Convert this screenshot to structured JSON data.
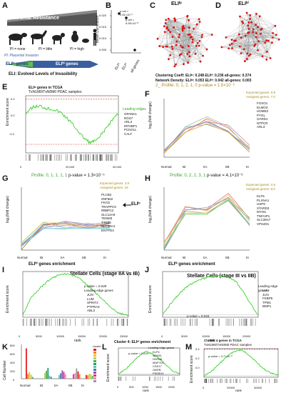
{
  "panelA": {
    "letter": "A",
    "banner": "Stromal Resistance",
    "pi_none": "PI = none",
    "pi_little": "PI = little",
    "pi_high": "PI = high",
    "pi_def": "PI: Placental Invasion",
    "eli_lo_genes": "ELIˡᵒ genes",
    "eli_hi_genes": "ELIʰⁱ genes",
    "eli_def": "ELI: Evolved Levels of Invasibility",
    "arrow_color": "#3a5fa0",
    "green_color": "#5fbf4d"
  },
  "panelB": {
    "letter": "B",
    "ylabel": "Mean Correlation",
    "yticks": [
      "0.020",
      "0.015",
      "0.010",
      "0.005"
    ],
    "xlabels": [
      "ELIˡᵒ",
      "ELIʰⁱ",
      "all-genes"
    ],
    "pval1": "p-val =",
    "pval1b": "2.61×10⁻¹",
    "pval2": "p-val =",
    "pval2b": "8.55×10⁻⁵"
  },
  "panelC": {
    "letter": "C",
    "title": "ELIˡᵒ"
  },
  "panelD": {
    "letter": "D",
    "title": "ELIʰⁱ"
  },
  "stats": {
    "line1": "Clustering Coeff: ELIˡᵒ: 0.248 ELIʰⁱ: 0.236 all-genes: 0.374",
    "line2": "Network Density: ELIˡᵒ: 0.053 ELIʰⁱ: 0.042 all-genes: 0.003"
  },
  "panelE": {
    "letter": "E",
    "title1": "ELIˡᵒ genes in TCGA",
    "title2": "TxN1M0/TxN0M0 PDAC samples",
    "ylabel": "Enrichment score",
    "yticks": [
      "0.2",
      "0.0",
      "-0.2"
    ],
    "xticks": [
      "0",
      "20,000",
      "40,000"
    ],
    "leading_label": "Leading edges",
    "leading": [
      "GPANK1",
      "RGS7",
      "ARL3",
      "IRF2BP1",
      "PCNX1L",
      "CALT"
    ]
  },
  "panelF": {
    "letter": "F",
    "profile": "2_ Profile: 0, 1, 2, 1, 0",
    "pvalue": "p-value = 1.5×10⁻⁶",
    "expected": "Expected genes: 0.9",
    "assigned": "Assigned genes: 7.0",
    "ylabel": "log₂(fold change)",
    "xticks": [
      "Normal",
      "IB",
      "IIA",
      "IIB",
      "III"
    ],
    "genes": [
      "FOXO1",
      "ELMO3",
      "HOMEZ",
      "PYGL",
      "OARD1",
      "NTPCR",
      "ARL3"
    ]
  },
  "panelG": {
    "letter": "G",
    "profile": "Profile: 0, 1, 1, 1, 1",
    "pvalue": "p-value = 1.3×10⁻⁵",
    "expected": "Expected genes: 3.8",
    "assigned": "Assigned genes: 19",
    "ylabel": "log₂(fold change)",
    "xticks": [
      "Normal",
      "IB",
      "IIA",
      "IIB",
      "III"
    ],
    "genes": [
      "PLCB2",
      "ZNF662",
      "FKCD",
      "TRAPPC9",
      "RBBP12",
      "SLC12A9",
      "TENM3",
      "TTC23",
      "SLC38A4",
      "ENTPD4"
    ],
    "arrow_label": "ELIˡᵒ"
  },
  "panelH": {
    "letter": "H",
    "profile": "Profile: 0, 2, 2, 3, 1",
    "pvalue": "p-value = 4.1×10⁻⁶",
    "expected": "Expected genes: 0.9",
    "assigned": "Assigned genes: 8.0",
    "ylabel": "log₂(fold change)",
    "xticks": [
      "Normal",
      "IB",
      "IIA",
      "IIB",
      "III"
    ],
    "genes": [
      "KLF5",
      "PLXNA1",
      "USP9",
      "STARD3",
      "MYO5",
      "TNFAIP1",
      "SLC39A7",
      "VPS4D1"
    ]
  },
  "panelI": {
    "letter": "I",
    "title": "ELIʰⁱ genes enrichment",
    "subtitle": "Stellate Cells (stage IIA vs IB)",
    "pvalue": "p-value = 0.039",
    "leading_label": "Leading edge genes",
    "leading": [
      "JUN",
      "LUM",
      "SPINT2",
      "PTPRA3",
      "ABL3"
    ],
    "ylabel": "Enrichment score",
    "xlabel": "rank",
    "xticks": [
      "0",
      "5000",
      "10000",
      "15000",
      "20000",
      "25000"
    ]
  },
  "panelJ": {
    "letter": "J",
    "title": "ELIʰⁱ genes enrichment",
    "subtitle": "Stellate Cells (stage III vs IIB)",
    "pvalue": "p-value = 0.034",
    "leading_label": "Leading edge genes",
    "leading": [
      "LUM",
      "JUN",
      "FKBP5",
      "TPM1",
      "BMP1"
    ],
    "ylabel": "Enrichment score",
    "xlabel": "rank",
    "xticks": [
      "0",
      "5000",
      "10000",
      "15000",
      "20000"
    ]
  },
  "panelK": {
    "letter": "K",
    "ylabel": "Cell Number",
    "yticks": [
      "800",
      "600",
      "400",
      "200",
      "0"
    ],
    "xticks": [
      "Normal",
      "IB",
      "IIA",
      "IIB",
      "III"
    ],
    "legend_title": "cluster"
  },
  "panelL": {
    "letter": "L",
    "title": "Cluster 4: ELIʰⁱ genes enrichment",
    "pvalue": "p-value = 0.028",
    "leading_label": "Leading edge genes",
    "leading": [
      "KLF5",
      "NEK81",
      "HSPB8",
      "MAP7D1",
      "CDK17",
      "GMFB",
      "PSMD11"
    ],
    "ylabel": "Enrichment score",
    "xlabel": "rank",
    "xticks": [
      "0",
      "500",
      "1000",
      "1500",
      "2000"
    ]
  },
  "panelM": {
    "letter": "M",
    "title1": "Cluster 4 genes in TCGA",
    "title2": "TxN1M0/TxN0M0 PDAC samples",
    "pvalue": "p-value = 3.7×10⁻⁶",
    "ylabel": "Enrichment score",
    "xlabel": "rank",
    "yticks": [
      "0.4",
      "0.2",
      "0.0"
    ],
    "xticks": [
      "0",
      "20000",
      "40000"
    ]
  }
}
